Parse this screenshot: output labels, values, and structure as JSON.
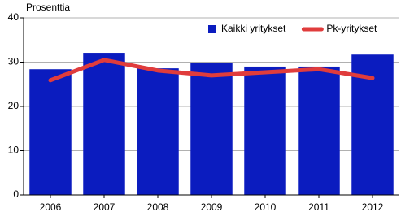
{
  "chart_data": {
    "type": "bar",
    "y_label": "Prosenttia",
    "categories": [
      "2006",
      "2007",
      "2008",
      "2009",
      "2010",
      "2011",
      "2012"
    ],
    "series": [
      {
        "name": "Kaikki yritykset",
        "type": "bar",
        "color": "#0b1cbf",
        "values": [
          28.4,
          32.1,
          28.6,
          29.9,
          29.0,
          29.0,
          31.7
        ]
      },
      {
        "name": "Pk-yritykset",
        "type": "line",
        "color": "#e03c3c",
        "values": [
          25.9,
          30.5,
          28.1,
          27.0,
          27.7,
          28.4,
          26.4
        ]
      }
    ],
    "ylim": [
      0,
      40
    ],
    "yticks": [
      0,
      10,
      20,
      30,
      40
    ],
    "grid": true,
    "legend": "top-right"
  }
}
